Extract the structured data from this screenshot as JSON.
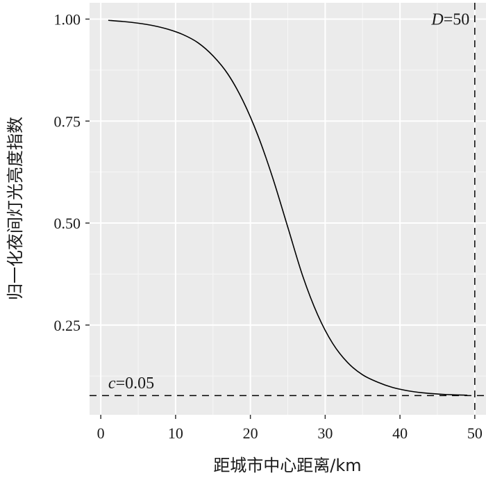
{
  "chart_data": {
    "type": "line",
    "title": "",
    "xlabel": "距城市中心距离/km",
    "ylabel": "归一化夜间灯光亮度指数",
    "xlim": [
      -1.5,
      51.5
    ],
    "ylim": [
      0.03,
      1.04
    ],
    "x_ticks": [
      0,
      10,
      20,
      30,
      40,
      50
    ],
    "x_tick_labels": [
      "0",
      "10",
      "20",
      "30",
      "40",
      "50"
    ],
    "y_ticks": [
      0.25,
      0.5,
      0.75,
      1.0
    ],
    "y_tick_labels": [
      "0.25",
      "0.50",
      "0.75",
      "1.00"
    ],
    "grid": true,
    "background": "#ebebeb",
    "series": [
      {
        "color": "#000000",
        "x": [
          1,
          3,
          5,
          7,
          9,
          11,
          13,
          15,
          17,
          19,
          21,
          23,
          25,
          27,
          29,
          31,
          33,
          35,
          37,
          39,
          41,
          43,
          45,
          47,
          49
        ],
        "y": [
          0.997,
          0.994,
          0.99,
          0.984,
          0.975,
          0.962,
          0.942,
          0.91,
          0.865,
          0.8,
          0.715,
          0.61,
          0.49,
          0.37,
          0.275,
          0.205,
          0.158,
          0.128,
          0.11,
          0.097,
          0.089,
          0.084,
          0.081,
          0.079,
          0.078
        ]
      }
    ],
    "annotations": [
      {
        "label_var": "c",
        "label_rest": "=0.05",
        "type": "hline",
        "value": 0.077,
        "label_x": 1,
        "label_y": 0.095
      },
      {
        "label_var": "D",
        "label_rest": "=50",
        "type": "vline",
        "value": 50,
        "label_x": 49.3,
        "label_y": 1.0
      }
    ]
  }
}
